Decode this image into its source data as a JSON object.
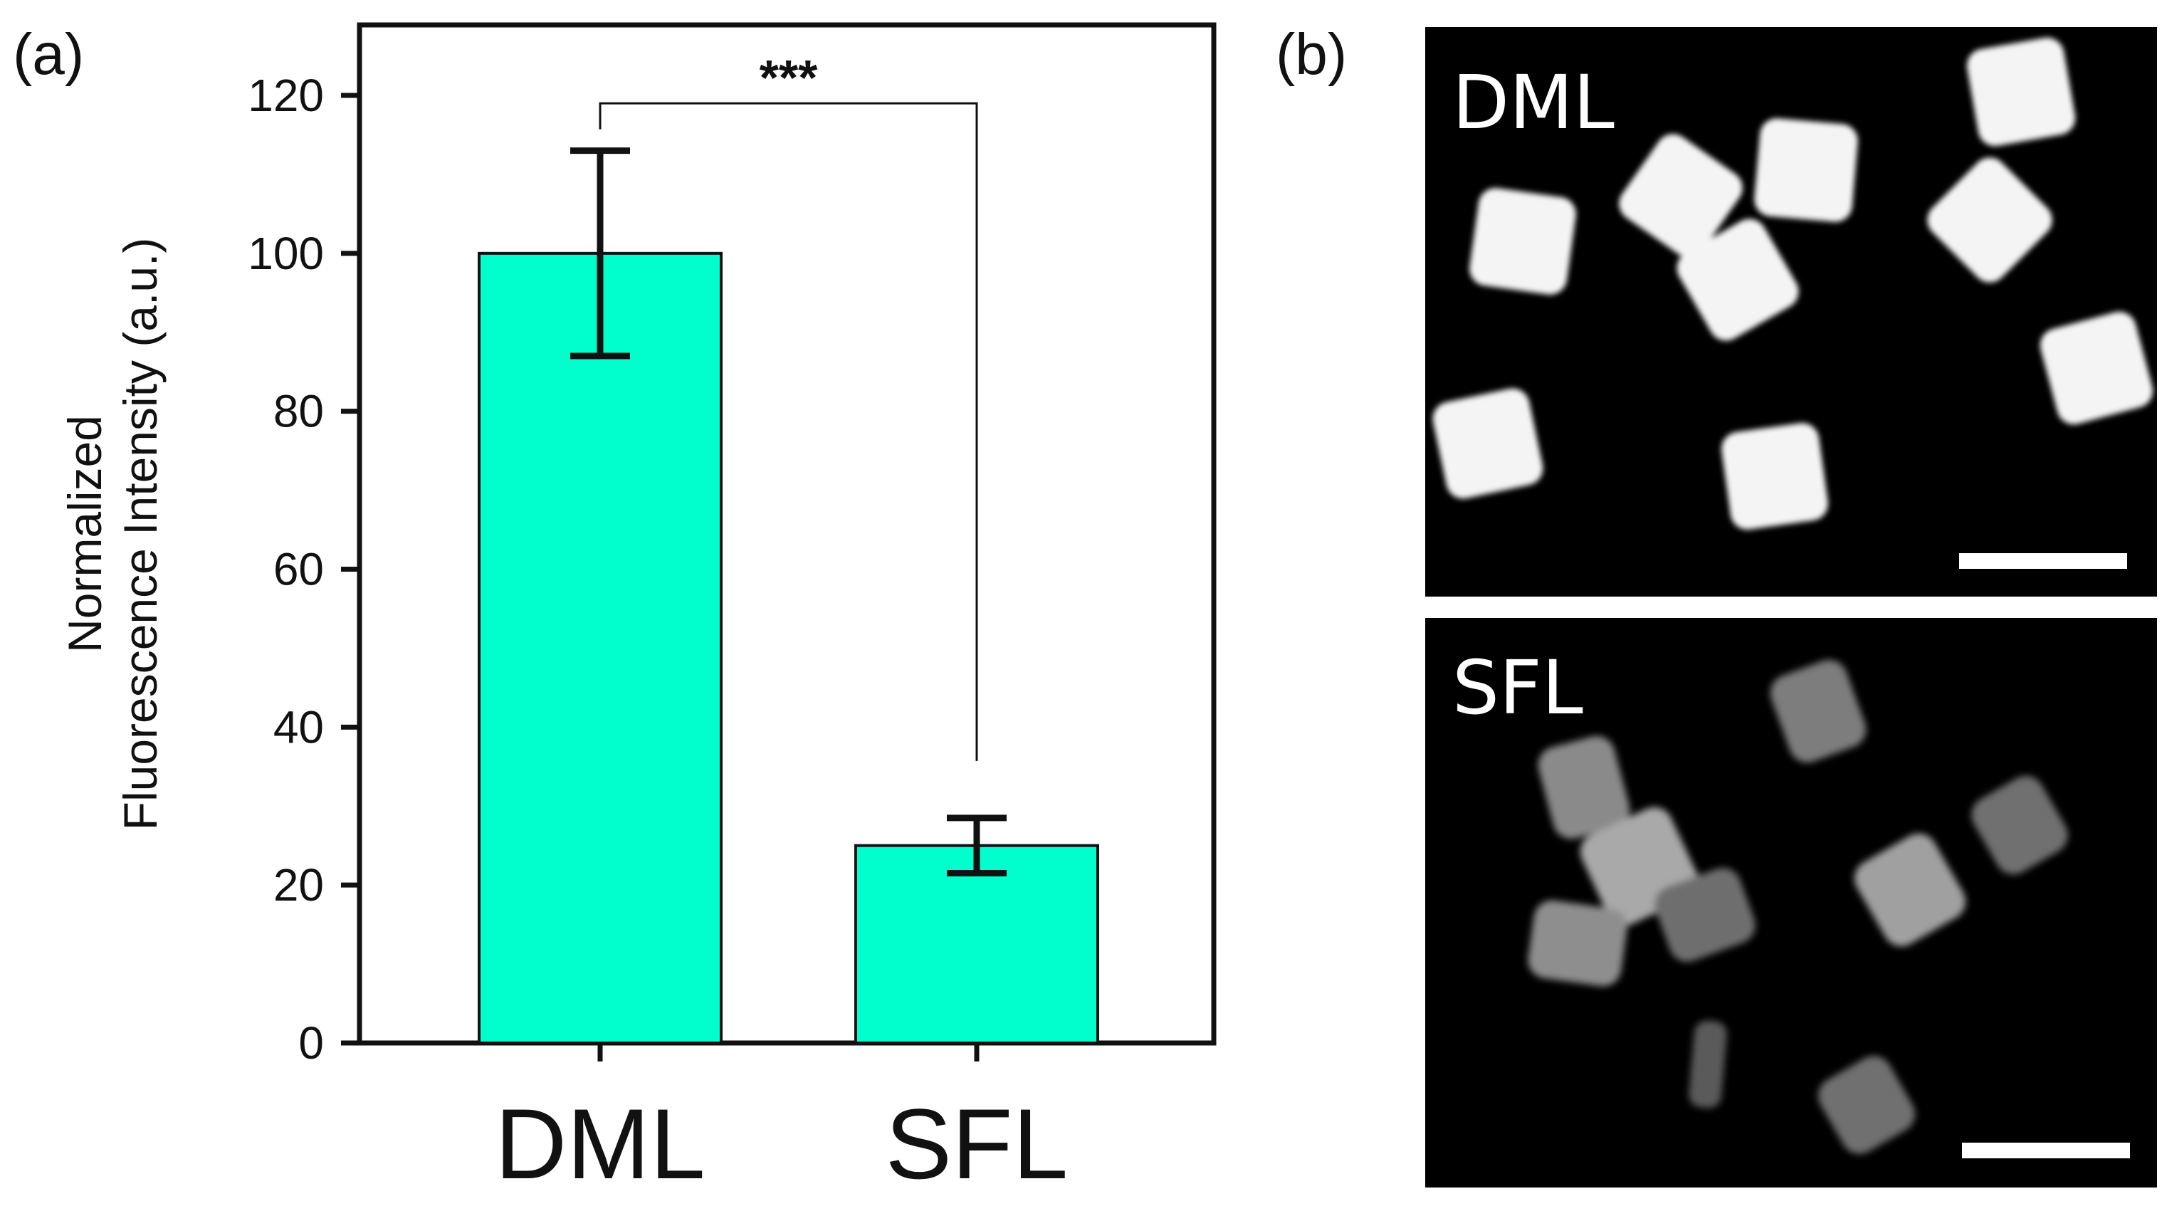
{
  "panels": {
    "a_label": "(a)",
    "b_label": "(b)"
  },
  "chart_data": {
    "type": "bar",
    "categories": [
      "DML",
      "SFL"
    ],
    "series": [
      {
        "values": [
          100,
          25
        ],
        "errors": [
          13,
          3.5
        ],
        "color": "#00ffcc"
      }
    ],
    "title": "",
    "xlabel": "",
    "ylabel": [
      "Normalized",
      "Fluorescence Intensity (a.u.)"
    ],
    "ylim": [
      0,
      128
    ],
    "yticks": [
      0,
      20,
      40,
      60,
      80,
      100,
      120
    ],
    "significance": {
      "from": "DML",
      "to": "SFL",
      "label": "***"
    },
    "grid": false,
    "legend": "none"
  },
  "micrographs": [
    {
      "label": "DML",
      "brightness": "bright",
      "has_scale_bar": true
    },
    {
      "label": "SFL",
      "brightness": "dim",
      "has_scale_bar": true
    }
  ]
}
